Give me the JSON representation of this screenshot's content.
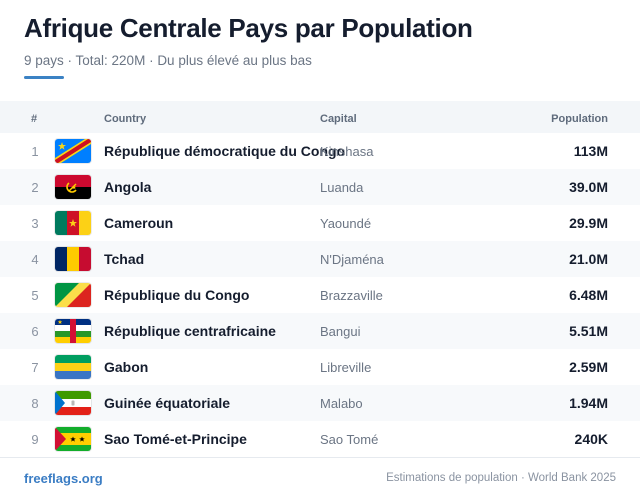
{
  "header": {
    "title": "Afrique Centrale Pays par Population",
    "subtitle": "9 pays · Total: 220M · Du plus élevé au plus bas"
  },
  "table": {
    "columns": {
      "num": "#",
      "country": "Country",
      "capital": "Capital",
      "population": "Population"
    },
    "rows": [
      {
        "num": "1",
        "country": "République démocratique du Congo",
        "capital": "Kinshasa",
        "population": "113M",
        "flag": "cd-flag-icon"
      },
      {
        "num": "2",
        "country": "Angola",
        "capital": "Luanda",
        "population": "39.0M",
        "flag": "ao-flag-icon"
      },
      {
        "num": "3",
        "country": "Cameroun",
        "capital": "Yaoundé",
        "population": "29.9M",
        "flag": "cm-flag-icon"
      },
      {
        "num": "4",
        "country": "Tchad",
        "capital": "N'Djaména",
        "population": "21.0M",
        "flag": "td-flag-icon"
      },
      {
        "num": "5",
        "country": "République du Congo",
        "capital": "Brazzaville",
        "population": "6.48M",
        "flag": "cg-flag-icon"
      },
      {
        "num": "6",
        "country": "République centrafricaine",
        "capital": "Bangui",
        "population": "5.51M",
        "flag": "cf-flag-icon"
      },
      {
        "num": "7",
        "country": "Gabon",
        "capital": "Libreville",
        "population": "2.59M",
        "flag": "ga-flag-icon"
      },
      {
        "num": "8",
        "country": "Guinée équatoriale",
        "capital": "Malabo",
        "population": "1.94M",
        "flag": "gq-flag-icon"
      },
      {
        "num": "9",
        "country": "Sao Tomé-et-Principe",
        "capital": "Sao Tomé",
        "population": "240K",
        "flag": "st-flag-icon"
      }
    ]
  },
  "footer": {
    "brand": "freeflags.org",
    "source": "Estimations de population · World Bank 2025"
  },
  "colors": {
    "accent": "#3b82c4",
    "brand": "#3b7dc4"
  }
}
